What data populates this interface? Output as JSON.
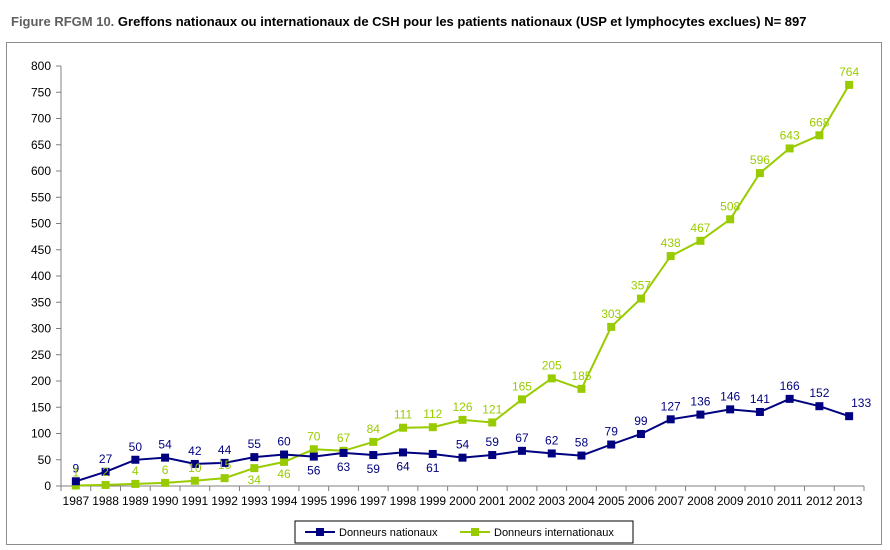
{
  "figure": {
    "prefix": "Figure RFGM 10.",
    "title": "Greffons nationaux ou internationaux de CSH pour les patients nationaux (USP et lymphocytes exclues) N= 897"
  },
  "chart_data": {
    "type": "line",
    "x": [
      "1987",
      "1988",
      "1989",
      "1990",
      "1991",
      "1992",
      "1993",
      "1994",
      "1995",
      "1996",
      "1997",
      "1998",
      "1999",
      "2000",
      "2001",
      "2002",
      "2003",
      "2004",
      "2005",
      "2006",
      "2007",
      "2008",
      "2009",
      "2010",
      "2011",
      "2012",
      "2013"
    ],
    "ylim": [
      0,
      800
    ],
    "yticks": [
      0,
      50,
      100,
      150,
      200,
      250,
      300,
      350,
      400,
      450,
      500,
      550,
      600,
      650,
      700,
      750,
      800
    ],
    "grid": false,
    "legend_position": "bottom",
    "series": [
      {
        "name": "Donneurs nationaux",
        "color": "#000080",
        "values": [
          9,
          27,
          50,
          54,
          42,
          44,
          55,
          60,
          56,
          63,
          59,
          64,
          61,
          54,
          59,
          67,
          62,
          58,
          79,
          99,
          127,
          136,
          146,
          141,
          166,
          152,
          133
        ]
      },
      {
        "name": "Donneurs internationaux",
        "color": "#99cc00",
        "values": [
          1,
          2,
          4,
          6,
          10,
          15,
          34,
          46,
          70,
          67,
          84,
          111,
          112,
          126,
          121,
          165,
          205,
          185,
          303,
          357,
          438,
          467,
          508,
          596,
          643,
          668,
          764
        ]
      }
    ]
  }
}
